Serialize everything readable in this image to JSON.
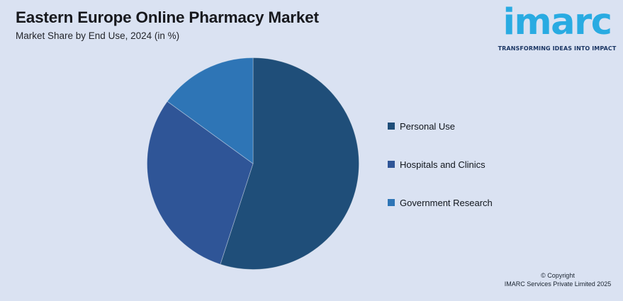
{
  "page": {
    "background_color": "#DAE2F2"
  },
  "header": {
    "title": "Eastern Europe Online Pharmacy Market",
    "subtitle": "Market Share by End Use, 2024 (in %)"
  },
  "logo": {
    "brand": "imarc",
    "tagline": "TRANSFORMING IDEAS INTO IMPACT",
    "brand_color": "#29ABE2",
    "tagline_color": "#1B3664"
  },
  "chart_data": {
    "type": "pie",
    "title": "Eastern Europe Online Pharmacy Market",
    "subtitle": "Market Share by End Use, 2024 (in %)",
    "unit": "%",
    "start_angle_deg": -90,
    "direction": "clockwise",
    "legend_position": "right",
    "data_labels": false,
    "slices": [
      {
        "label": "Personal Use",
        "value": 55,
        "color": "#1F4E79"
      },
      {
        "label": "Hospitals and Clinics",
        "value": 30,
        "color": "#2F5597"
      },
      {
        "label": "Government Research",
        "value": 15,
        "color": "#2E75B6"
      }
    ]
  },
  "footer": {
    "copyright_line1": "© Copyright",
    "copyright_line2": "IMARC Services Private Limited 2025"
  }
}
